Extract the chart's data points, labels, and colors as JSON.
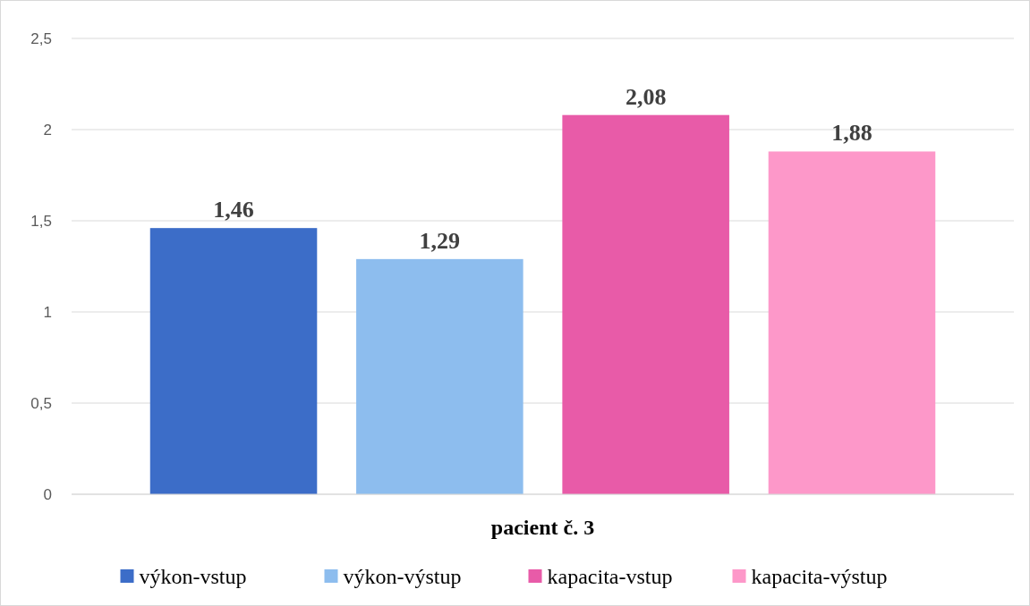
{
  "chart_data": {
    "type": "bar",
    "categories": [
      "pacient č. 3"
    ],
    "series": [
      {
        "name": "výkon-vstup",
        "color": "#3c6dc8",
        "values": [
          1.46
        ],
        "value_labels": [
          "1,46"
        ]
      },
      {
        "name": "výkon-výstup",
        "color": "#8dbdee",
        "values": [
          1.29
        ],
        "value_labels": [
          "1,29"
        ]
      },
      {
        "name": "kapacita-vstup",
        "color": "#e85ba8",
        "values": [
          2.08
        ],
        "value_labels": [
          "2,08"
        ]
      },
      {
        "name": "kapacita-výstup",
        "color": "#fd98c9",
        "values": [
          1.88
        ],
        "value_labels": [
          "1,88"
        ]
      }
    ],
    "ylim": [
      0,
      2.5
    ],
    "yticks": [
      0,
      {
        "value": 0.5,
        "label": "0,5"
      },
      1,
      {
        "value": 1.5,
        "label": "1,5"
      },
      2,
      {
        "value": 2.5,
        "label": "2,5"
      }
    ],
    "grid": "y",
    "legend": "bottom"
  }
}
